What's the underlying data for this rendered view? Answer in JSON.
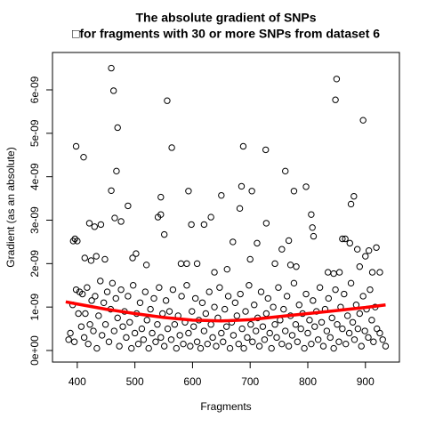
{
  "chart_data": {
    "type": "scatter",
    "title": "The absolute gradient of SNPs",
    "subtitle": "□for fragments with 30 or more SNPs from dataset 6",
    "xlabel": "Fragments",
    "ylabel": "Gradient (as an absolute)",
    "xlim": [
      357,
      959
    ],
    "ylim": [
      -2.66e-10,
      6.86e-09
    ],
    "xticks": [
      400,
      500,
      600,
      700,
      800,
      900
    ],
    "yticks": [
      {
        "value": 0,
        "label": "0e+00"
      },
      {
        "value": 1e-09,
        "label": "1e-09"
      },
      {
        "value": 2e-09,
        "label": "2e-09"
      },
      {
        "value": 3e-09,
        "label": "3e-09"
      },
      {
        "value": 4e-09,
        "label": "4e-09"
      },
      {
        "value": 5e-09,
        "label": "5e-09"
      },
      {
        "value": 6e-09,
        "label": "6e-09"
      }
    ],
    "color": "#000000",
    "x": [
      459,
      463,
      470,
      468,
      398,
      411,
      556,
      564,
      688,
      727,
      850,
      848,
      896,
      761,
      776,
      797,
      685,
      703,
      682,
      459,
      545,
      650,
      593,
      880,
      875,
      806,
      393,
      396,
      400,
      421,
      430,
      441,
      465,
      476,
      488,
      540,
      545,
      598,
      620,
      632,
      728,
      808,
      810,
      860,
      865,
      873,
      886,
      906,
      919,
      767,
      755,
      712,
      670,
      551,
      502,
      496,
      413,
      424,
      433,
      448,
      520,
      580,
      590,
      608,
      638,
      660,
      700,
      743,
      770,
      780,
      835,
      845,
      855,
      890,
      900,
      912,
      925,
      385,
      388,
      392,
      395,
      398,
      402,
      404,
      407,
      409,
      412,
      414,
      417,
      419,
      422,
      425,
      428,
      431,
      434,
      437,
      440,
      443,
      446,
      449,
      452,
      455,
      458,
      461,
      464,
      467,
      470,
      473,
      476,
      479,
      482,
      485,
      488,
      491,
      494,
      497,
      500,
      503,
      506,
      509,
      512,
      515,
      518,
      521,
      524,
      527,
      530,
      533,
      536,
      539,
      542,
      545,
      548,
      551,
      554,
      557,
      560,
      563,
      566,
      569,
      572,
      575,
      578,
      581,
      584,
      587,
      590,
      593,
      596,
      599,
      602,
      605,
      608,
      611,
      614,
      617,
      620,
      623,
      626,
      629,
      632,
      635,
      638,
      641,
      644,
      647,
      650,
      653,
      656,
      659,
      662,
      665,
      668,
      671,
      674,
      677,
      680,
      683,
      686,
      689,
      692,
      695,
      698,
      701,
      704,
      707,
      710,
      713,
      716,
      719,
      722,
      725,
      728,
      731,
      734,
      737,
      740,
      743,
      746,
      749,
      752,
      755,
      758,
      761,
      764,
      767,
      770,
      773,
      776,
      779,
      782,
      785,
      788,
      791,
      794,
      797,
      800,
      803,
      806,
      809,
      812,
      815,
      818,
      821,
      824,
      827,
      830,
      833,
      836,
      839,
      842,
      845,
      848,
      851,
      854,
      857,
      860,
      863,
      866,
      869,
      872,
      875,
      878,
      881,
      884,
      887,
      890,
      893,
      896,
      899,
      902,
      905,
      908,
      911,
      914,
      917,
      920,
      925,
      930,
      935
    ],
    "values": [
      6.5e-09,
      5.98e-09,
      5.13e-09,
      4.13e-09,
      4.7e-09,
      4.45e-09,
      5.75e-09,
      4.67e-09,
      4.7e-09,
      4.62e-09,
      6.25e-09,
      5.77e-09,
      5.3e-09,
      4.13e-09,
      3.67e-09,
      3.77e-09,
      3.78e-09,
      3.67e-09,
      3.27e-09,
      3.68e-09,
      3.53e-09,
      3.57e-09,
      3.67e-09,
      3.55e-09,
      3.37e-09,
      3.13e-09,
      2.52e-09,
      2.57e-09,
      2.52e-09,
      2.93e-09,
      2.85e-09,
      2.9e-09,
      3.05e-09,
      2.97e-09,
      3.33e-09,
      3.07e-09,
      3.13e-09,
      2.9e-09,
      2.9e-09,
      3.07e-09,
      2.93e-09,
      2.83e-09,
      2.63e-09,
      2.57e-09,
      2.57e-09,
      2.47e-09,
      2.33e-09,
      2.3e-09,
      2.37e-09,
      2.53e-09,
      2.33e-09,
      2.47e-09,
      2.5e-09,
      2.67e-09,
      2.23e-09,
      2.13e-09,
      2.13e-09,
      2.07e-09,
      2.17e-09,
      2.1e-09,
      1.97e-09,
      2e-09,
      2e-09,
      2e-09,
      1.8e-09,
      1.87e-09,
      2.1e-09,
      2e-09,
      1.97e-09,
      1.93e-09,
      1.8e-09,
      1.77e-09,
      1.8e-09,
      1.93e-09,
      2.17e-09,
      1.8e-09,
      1.8e-09,
      2.5e-10,
      4e-10,
      1.05e-09,
      2e-10,
      1.4e-09,
      8.5e-10,
      1.35e-09,
      5.5e-10,
      1.3e-09,
      3e-10,
      8.5e-10,
      1.45e-09,
      1.5e-10,
      6e-10,
      1.15e-09,
      4.5e-10,
      1.25e-09,
      5e-11,
      8e-10,
      1.6e-09,
      3.5e-10,
      1.1e-09,
      6e-10,
      1.35e-09,
      2e-10,
      9.5e-10,
      1.55e-09,
      4.5e-10,
      1.2e-09,
      7.5e-10,
      1e-10,
      1.4e-09,
      5.5e-10,
      9e-10,
      3e-10,
      1.25e-09,
      6.5e-10,
      5e-11,
      1.5e-09,
      4e-10,
      8.5e-10,
      1.5e-10,
      1.1e-09,
      5e-10,
      2.5e-10,
      1.35e-09,
      7e-10,
      5e-11,
      9.5e-10,
      4e-10,
      1.2e-09,
      2e-10,
      6e-10,
      1.45e-09,
      3e-10,
      8.5e-10,
      1e-10,
      1.15e-09,
      5e-10,
      9e-10,
      2.5e-10,
      1.4e-09,
      6e-10,
      5e-11,
      8e-10,
      3.5e-10,
      1.25e-09,
      1.5e-10,
      6.5e-10,
      1.5e-09,
      4e-10,
      1e-10,
      9e-10,
      5.5e-10,
      1.2e-09,
      2e-10,
      7e-10,
      5e-11,
      1.1e-09,
      4.5e-10,
      8.5e-10,
      1.5e-10,
      1.35e-09,
      6e-10,
      3e-10,
      1e-09,
      1e-10,
      7.5e-10,
      1.45e-09,
      4e-10,
      2e-10,
      9.5e-10,
      5.5e-10,
      1.25e-09,
      5e-11,
      6.5e-10,
      3.5e-10,
      1.1e-09,
      8e-10,
      1.5e-10,
      1.3e-09,
      5e-10,
      5e-11,
      9e-10,
      3e-10,
      1.5e-09,
      6e-10,
      2e-10,
      1.05e-09,
      4.5e-10,
      7.5e-10,
      1e-10,
      1.35e-09,
      5.5e-10,
      2.5e-10,
      8.5e-10,
      1.2e-09,
      4e-10,
      5e-11,
      1e-09,
      6e-10,
      3e-10,
      1.45e-09,
      7e-10,
      1.5e-10,
      9.5e-10,
      4.5e-10,
      1.25e-09,
      1e-10,
      8e-10,
      3.5e-10,
      1.55e-09,
      6e-10,
      2e-10,
      1.05e-09,
      5e-10,
      8.5e-10,
      5e-11,
      1.3e-09,
      4e-10,
      7e-10,
      1.5e-10,
      1.15e-09,
      5.5e-10,
      9e-10,
      2.5e-10,
      1.45e-09,
      6.5e-10,
      1e-10,
      9.5e-10,
      4.5e-10,
      1.2e-09,
      3e-10,
      7.5e-10,
      5e-11,
      1.4e-09,
      6e-10,
      2e-10,
      1e-09,
      5e-10,
      1.3e-09,
      1.5e-10,
      8e-10,
      4e-10,
      1.55e-09,
      6.5e-10,
      2.5e-10,
      1.05e-09,
      5e-10,
      8.5e-10,
      1e-10,
      1.25e-09,
      4.5e-10,
      9.5e-10,
      3e-10,
      1.4e-09,
      7e-10,
      2e-10,
      1e-09,
      5e-10,
      4e-10,
      2.5e-10,
      1e-10
    ],
    "trend": {
      "color": "#ff0000",
      "x": [
        380,
        400,
        450,
        500,
        550,
        600,
        650,
        700,
        750,
        800,
        850,
        900,
        935
      ],
      "values": [
        1.12e-09,
        1.07e-09,
        9.5e-10,
        8.5e-10,
        7.6e-10,
        7e-10,
        6.8e-10,
        7.1e-10,
        7.8e-10,
        8.5e-10,
        9.2e-10,
        9.9e-10,
        1.05e-09
      ]
    }
  }
}
